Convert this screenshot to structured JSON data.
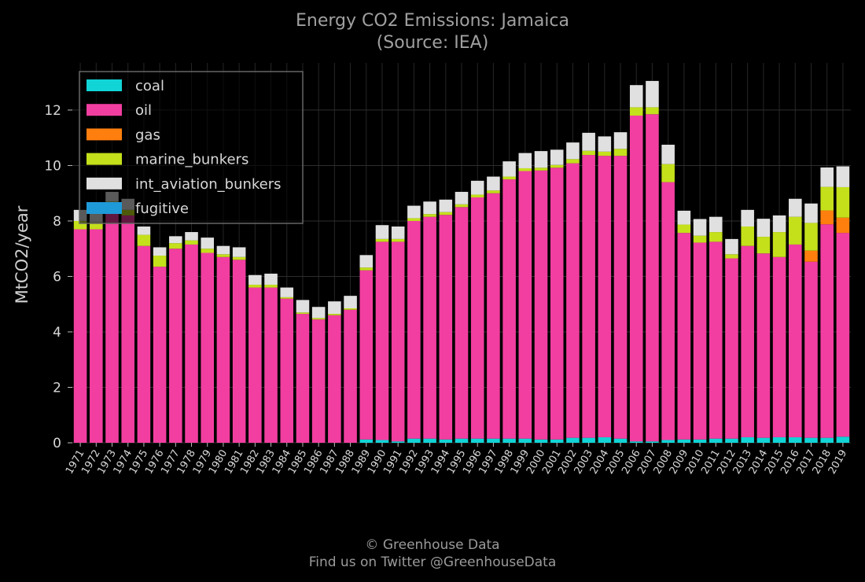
{
  "chart_data": {
    "type": "bar",
    "stacked": true,
    "title": "Energy CO2 Emissions: Jamaica",
    "subtitle": "(Source: IEA)",
    "xlabel": "",
    "ylabel": "MtCO2/year",
    "ylim": [
      0,
      13.7
    ],
    "yticks": [
      0,
      2,
      4,
      6,
      8,
      10,
      12
    ],
    "grid": true,
    "legend_position": "top-left",
    "categories": [
      "1971",
      "1972",
      "1973",
      "1974",
      "1975",
      "1976",
      "1977",
      "1978",
      "1979",
      "1980",
      "1981",
      "1982",
      "1983",
      "1984",
      "1985",
      "1986",
      "1987",
      "1988",
      "1989",
      "1990",
      "1991",
      "1992",
      "1993",
      "1994",
      "1995",
      "1996",
      "1997",
      "1998",
      "1999",
      "2000",
      "2001",
      "2002",
      "2003",
      "2004",
      "2005",
      "2006",
      "2007",
      "2008",
      "2009",
      "2010",
      "2011",
      "2012",
      "2013",
      "2014",
      "2015",
      "2016",
      "2017",
      "2018",
      "2019"
    ],
    "series": [
      {
        "name": "coal",
        "color": "#11d4d6",
        "values": [
          0,
          0,
          0,
          0,
          0,
          0,
          0,
          0,
          0,
          0,
          0,
          0,
          0,
          0,
          0,
          0,
          0,
          0,
          0.12,
          0.1,
          0.05,
          0.15,
          0.15,
          0.12,
          0.15,
          0.15,
          0.15,
          0.15,
          0.15,
          0.12,
          0.12,
          0.18,
          0.18,
          0.2,
          0.15,
          0.05,
          0.05,
          0.1,
          0.12,
          0.12,
          0.15,
          0.15,
          0.2,
          0.18,
          0.2,
          0.2,
          0.18,
          0.18,
          0.22
        ]
      },
      {
        "name": "oil",
        "color": "#f23ea0",
        "values": [
          7.7,
          7.7,
          8.5,
          8.2,
          7.1,
          6.35,
          7.0,
          7.15,
          6.85,
          6.7,
          6.6,
          5.6,
          5.6,
          5.2,
          4.65,
          4.45,
          4.6,
          4.8,
          6.1,
          7.15,
          7.2,
          7.85,
          8.0,
          8.1,
          8.35,
          8.7,
          8.85,
          9.35,
          9.65,
          9.7,
          9.8,
          9.9,
          10.2,
          10.15,
          10.2,
          11.75,
          11.8,
          9.3,
          7.45,
          7.1,
          7.1,
          6.5,
          6.9,
          6.65,
          6.5,
          6.95,
          6.35,
          7.7,
          7.35
        ]
      },
      {
        "name": "gas",
        "color": "#ff7f0e",
        "values": [
          0,
          0,
          0,
          0,
          0,
          0,
          0,
          0,
          0,
          0,
          0,
          0,
          0,
          0,
          0,
          0,
          0,
          0,
          0,
          0,
          0,
          0,
          0,
          0,
          0,
          0,
          0,
          0,
          0,
          0,
          0,
          0,
          0,
          0,
          0,
          0,
          0,
          0,
          0,
          0,
          0,
          0,
          0,
          0,
          0,
          0,
          0.4,
          0.5,
          0.55
        ]
      },
      {
        "name": "marine_bunkers",
        "color": "#c4e01b",
        "values": [
          0.3,
          0.25,
          0.2,
          0.2,
          0.4,
          0.4,
          0.2,
          0.15,
          0.15,
          0.1,
          0.1,
          0.1,
          0.1,
          0.05,
          0.05,
          0.05,
          0.05,
          0.05,
          0.1,
          0.1,
          0.1,
          0.1,
          0.1,
          0.1,
          0.1,
          0.1,
          0.1,
          0.1,
          0.1,
          0.1,
          0.1,
          0.15,
          0.15,
          0.15,
          0.25,
          0.3,
          0.25,
          0.65,
          0.3,
          0.25,
          0.35,
          0.15,
          0.7,
          0.6,
          0.9,
          1.0,
          1.0,
          0.85,
          1.1
        ]
      },
      {
        "name": "int_aviation_bunkers",
        "color": "#e0e0e0",
        "values": [
          0.4,
          0.4,
          0.35,
          0.4,
          0.3,
          0.3,
          0.25,
          0.3,
          0.4,
          0.3,
          0.35,
          0.35,
          0.4,
          0.35,
          0.45,
          0.4,
          0.45,
          0.45,
          0.45,
          0.5,
          0.45,
          0.45,
          0.45,
          0.45,
          0.45,
          0.5,
          0.5,
          0.55,
          0.55,
          0.6,
          0.55,
          0.6,
          0.65,
          0.55,
          0.6,
          0.8,
          0.95,
          0.7,
          0.5,
          0.6,
          0.55,
          0.55,
          0.6,
          0.65,
          0.6,
          0.65,
          0.7,
          0.7,
          0.75
        ]
      },
      {
        "name": "fugitive",
        "color": "#1f9ad8",
        "values": [
          0,
          0,
          0,
          0,
          0,
          0,
          0,
          0,
          0,
          0,
          0,
          0,
          0,
          0,
          0,
          0,
          0,
          0,
          0,
          0,
          0,
          0,
          0,
          0,
          0,
          0,
          0,
          0,
          0,
          0,
          0,
          0,
          0,
          0,
          0,
          0,
          0,
          0,
          0,
          0,
          0,
          0,
          0,
          0,
          0,
          0,
          0,
          0,
          0
        ]
      }
    ]
  },
  "footer": {
    "line1": "© Greenhouse Data",
    "line2": "Find us on Twitter @GreenhouseData"
  }
}
